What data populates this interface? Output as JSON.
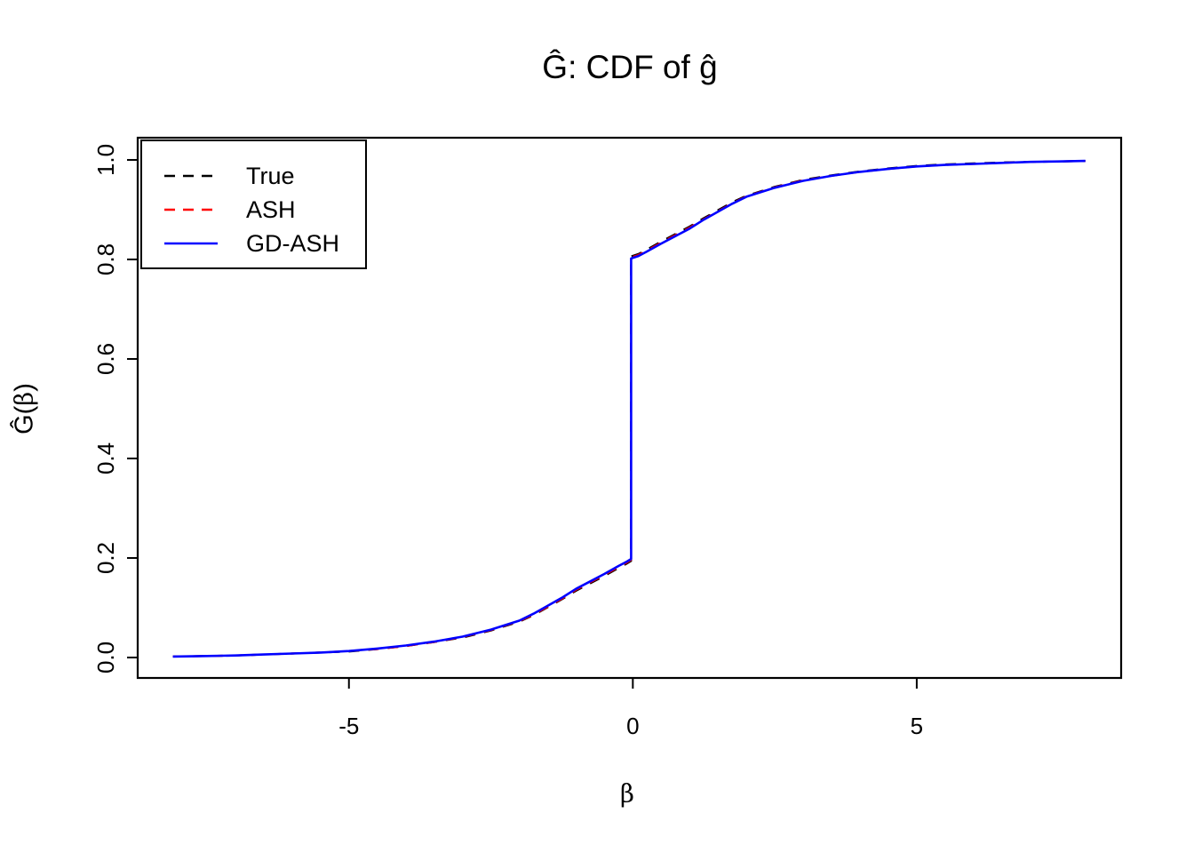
{
  "chart_data": {
    "type": "line",
    "title": "Ĝ: CDF of ĝ",
    "xlabel": "β",
    "ylabel": "Ĝ(β)",
    "xlim": [
      -8.72,
      8.6
    ],
    "ylim": [
      -0.0411,
      1.0446
    ],
    "x_ticks": [
      -5,
      0,
      5
    ],
    "x_tick_labels": [
      "-5",
      "0",
      "5"
    ],
    "y_ticks": [
      0.0,
      0.2,
      0.4,
      0.6,
      0.8,
      1.0
    ],
    "y_tick_labels": [
      "0.0",
      "0.2",
      "0.4",
      "0.6",
      "0.8",
      "1.0"
    ],
    "grid": false,
    "frame": "full-box",
    "legend_position": "top-left",
    "axis_color": "#000000",
    "jump": {
      "x": -0.03,
      "from": 0.2,
      "to": 0.8
    },
    "x": [
      -8.1,
      -7.5,
      -7,
      -6.5,
      -6,
      -5.5,
      -5,
      -4.5,
      -4,
      -3.5,
      -3,
      -2.5,
      -2,
      -1.75,
      -1.5,
      -1.25,
      -1,
      -0.75,
      -0.5,
      -0.25,
      -0.1,
      -0.03,
      -0.03,
      0.1,
      0.25,
      0.5,
      0.75,
      1,
      1.25,
      1.5,
      1.75,
      2,
      2.5,
      3,
      3.5,
      4,
      4.5,
      5,
      5.5,
      6,
      6.5,
      7,
      7.5,
      7.97
    ],
    "series": [
      {
        "name": "True",
        "color": "#000000",
        "line_style": "dashed",
        "y": [
          0.002,
          0.003,
          0.004,
          0.006,
          0.008,
          0.01,
          0.012,
          0.017,
          0.023,
          0.031,
          0.04,
          0.054,
          0.072,
          0.085,
          0.101,
          0.117,
          0.134,
          0.149,
          0.164,
          0.18,
          0.189,
          0.194,
          0.806,
          0.811,
          0.82,
          0.836,
          0.851,
          0.866,
          0.883,
          0.899,
          0.915,
          0.928,
          0.946,
          0.96,
          0.969,
          0.977,
          0.983,
          0.988,
          0.991,
          0.993,
          0.995,
          0.996,
          0.997,
          0.998
        ]
      },
      {
        "name": "ASH",
        "color": "#FF0000",
        "line_style": "dashed",
        "y": [
          0.002,
          0.003,
          0.004,
          0.006,
          0.008,
          0.01,
          0.013,
          0.017,
          0.023,
          0.031,
          0.041,
          0.055,
          0.073,
          0.086,
          0.102,
          0.118,
          0.136,
          0.151,
          0.166,
          0.182,
          0.191,
          0.196,
          0.804,
          0.809,
          0.818,
          0.834,
          0.849,
          0.864,
          0.881,
          0.897,
          0.913,
          0.927,
          0.945,
          0.959,
          0.968,
          0.976,
          0.982,
          0.987,
          0.99,
          0.992,
          0.994,
          0.996,
          0.997,
          0.998
        ]
      },
      {
        "name": "GD-ASH",
        "color": "#0000FF",
        "line_style": "solid",
        "y": [
          0.002,
          0.003,
          0.004,
          0.006,
          0.008,
          0.01,
          0.013,
          0.018,
          0.024,
          0.032,
          0.042,
          0.056,
          0.074,
          0.088,
          0.104,
          0.12,
          0.138,
          0.153,
          0.168,
          0.184,
          0.193,
          0.198,
          0.802,
          0.807,
          0.816,
          0.832,
          0.847,
          0.862,
          0.88,
          0.896,
          0.912,
          0.926,
          0.944,
          0.958,
          0.968,
          0.976,
          0.982,
          0.987,
          0.99,
          0.992,
          0.994,
          0.996,
          0.997,
          0.998
        ]
      }
    ]
  }
}
